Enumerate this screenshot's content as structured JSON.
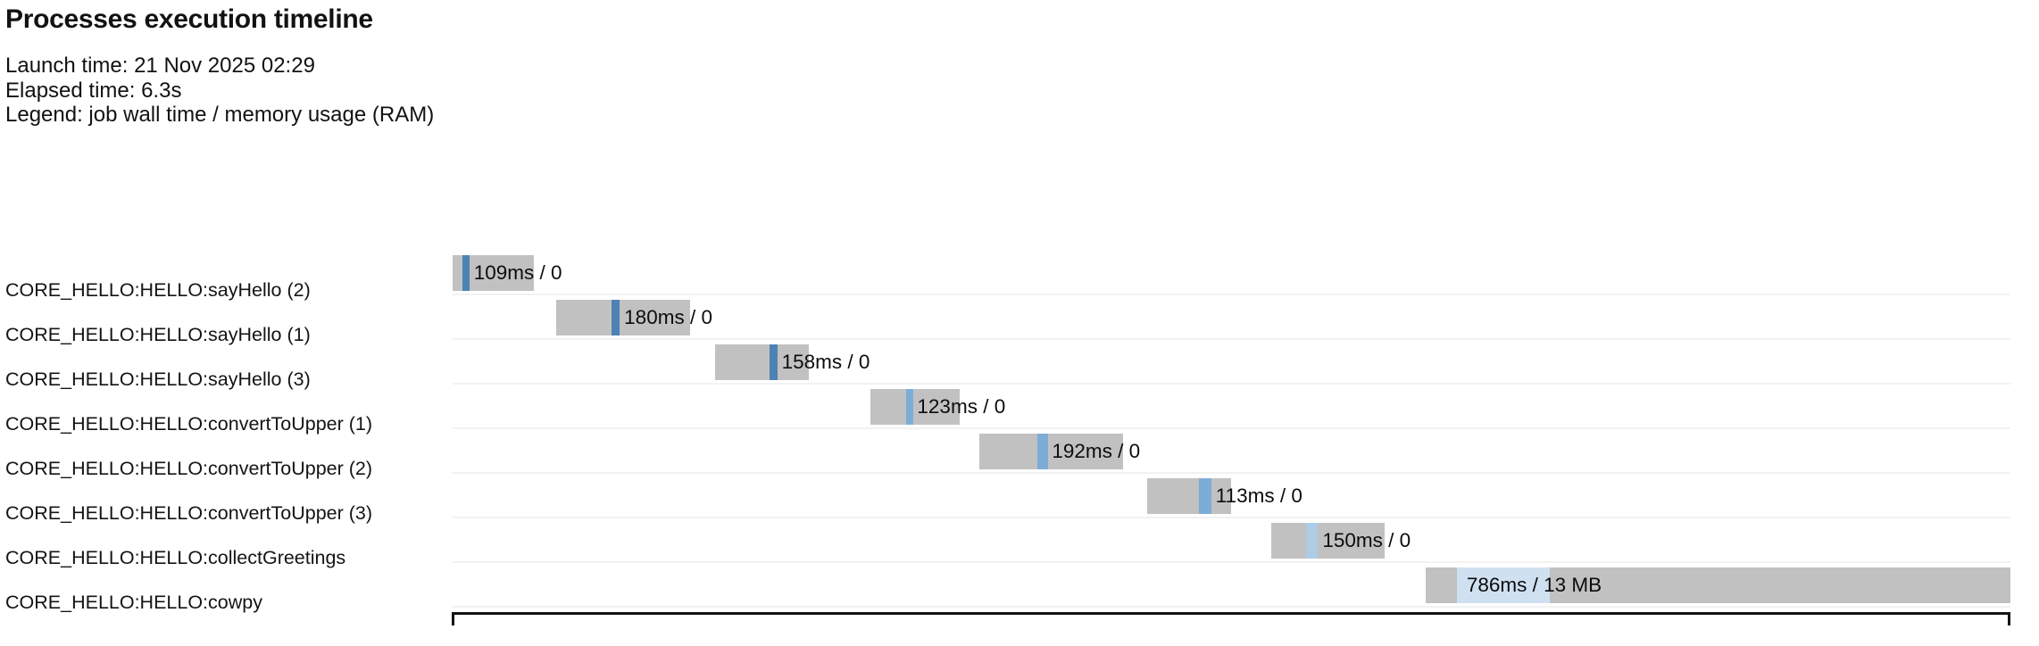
{
  "header": {
    "title": "Processes execution timeline"
  },
  "info": {
    "launch_line": "Launch time: 21 Nov 2025 02:29",
    "elapsed_line": "Elapsed time: 6.3s",
    "legend_line": "Legend: job wall time / memory usage (RAM)"
  },
  "colors": {
    "bar_gray": "#c1c1c1",
    "row_separator": "#f2f2f2",
    "text": "#121212",
    "box_border": "#141414",
    "sayHello_blue": "#4d82b4",
    "convertToUpper_blue": "#7dadd6",
    "collectGreetings_blue": "#aecde5",
    "cowpy_blue": "#cfe0f1"
  },
  "chart_data": {
    "type": "gantt",
    "title": "Processes execution timeline",
    "time_unit": "seconds",
    "xlim": [
      0,
      6.3
    ],
    "elapsed_total": "6.3s",
    "launch_time": "21 Nov 2025 02:29",
    "legend_note": "job wall time / memory usage (RAM)",
    "tasks": [
      {
        "label": "CORE_HELLO:HELLO:sayHello (2)",
        "value": "109ms / 0",
        "start": 0.0,
        "end": 0.33,
        "run_start": 0.04,
        "run_end": 0.07,
        "text_at": 0.075,
        "color": "#4d82b4"
      },
      {
        "label": "CORE_HELLO:HELLO:sayHello (1)",
        "value": "180ms / 0",
        "start": 0.42,
        "end": 0.96,
        "run_start": 0.643,
        "run_end": 0.675,
        "text_at": 0.683,
        "color": "#4d82b4"
      },
      {
        "label": "CORE_HELLO:HELLO:sayHello (3)",
        "value": "158ms / 0",
        "start": 1.06,
        "end": 1.44,
        "run_start": 1.282,
        "run_end": 1.315,
        "text_at": 1.32,
        "color": "#4d82b4"
      },
      {
        "label": "CORE_HELLO:HELLO:convertToUpper (1)",
        "value": "123ms / 0",
        "start": 1.69,
        "end": 2.05,
        "run_start": 1.834,
        "run_end": 1.863,
        "text_at": 1.868,
        "color": "#7dadd6"
      },
      {
        "label": "CORE_HELLO:HELLO:convertToUpper (2)",
        "value": "192ms / 0",
        "start": 2.13,
        "end": 2.71,
        "run_start": 2.365,
        "run_end": 2.408,
        "text_at": 2.413,
        "color": "#7dadd6"
      },
      {
        "label": "CORE_HELLO:HELLO:convertToUpper (3)",
        "value": "113ms / 0",
        "start": 2.81,
        "end": 3.15,
        "run_start": 3.019,
        "run_end": 3.069,
        "text_at": 3.075,
        "color": "#7dadd6"
      },
      {
        "label": "CORE_HELLO:HELLO:collectGreetings",
        "value": "150ms / 0",
        "start": 3.31,
        "end": 3.77,
        "run_start": 3.45,
        "run_end": 3.5,
        "text_at": 3.507,
        "color": "#aecde5"
      },
      {
        "label": "CORE_HELLO:HELLO:cowpy",
        "value": "786ms / 13 MB",
        "start": 3.935,
        "end": 6.3,
        "run_start": 4.06,
        "run_end": 4.437,
        "text_at": 4.09,
        "color": "#cfe0f1"
      }
    ]
  }
}
